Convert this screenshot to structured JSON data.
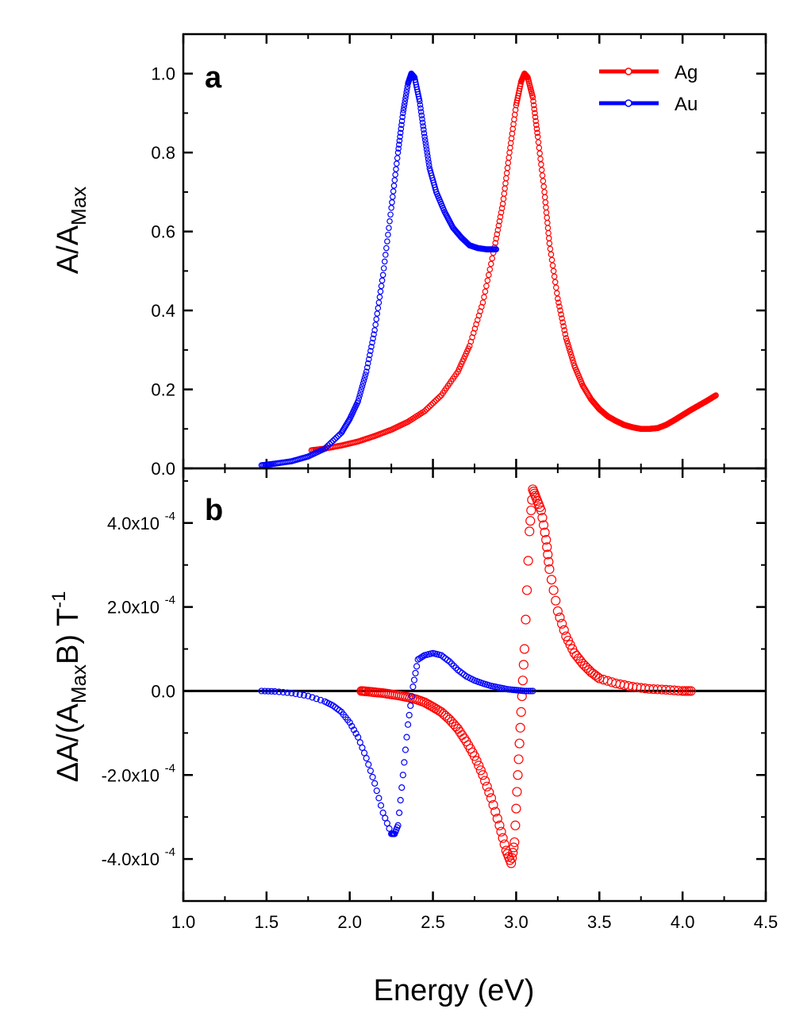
{
  "chart_data": [
    {
      "type": "scatter",
      "panel_label": "a",
      "ylabel_main": "A/A",
      "ylabel_sub": "Max",
      "xlim": [
        1.0,
        4.5
      ],
      "ylim": [
        0.0,
        1.1
      ],
      "yticks": [
        0.0,
        0.2,
        0.4,
        0.6,
        0.8,
        1.0
      ],
      "ytick_labels": [
        "0.0",
        "0.2",
        "0.4",
        "0.6",
        "0.8",
        "1.0"
      ],
      "grid": false,
      "legend_position": "top-right",
      "series": [
        {
          "name": "Ag",
          "color": "#ff0000",
          "points": [
            [
              1.77,
              0.046
            ],
            [
              1.85,
              0.05
            ],
            [
              1.95,
              0.058
            ],
            [
              2.05,
              0.068
            ],
            [
              2.15,
              0.082
            ],
            [
              2.25,
              0.098
            ],
            [
              2.35,
              0.118
            ],
            [
              2.45,
              0.145
            ],
            [
              2.55,
              0.185
            ],
            [
              2.65,
              0.245
            ],
            [
              2.72,
              0.31
            ],
            [
              2.8,
              0.42
            ],
            [
              2.87,
              0.56
            ],
            [
              2.92,
              0.67
            ],
            [
              2.96,
              0.8
            ],
            [
              3.0,
              0.92
            ],
            [
              3.03,
              0.98
            ],
            [
              3.05,
              1.0
            ],
            [
              3.07,
              0.99
            ],
            [
              3.1,
              0.94
            ],
            [
              3.13,
              0.84
            ],
            [
              3.17,
              0.7
            ],
            [
              3.2,
              0.57
            ],
            [
              3.25,
              0.43
            ],
            [
              3.3,
              0.33
            ],
            [
              3.35,
              0.26
            ],
            [
              3.4,
              0.21
            ],
            [
              3.45,
              0.175
            ],
            [
              3.5,
              0.15
            ],
            [
              3.55,
              0.132
            ],
            [
              3.6,
              0.12
            ],
            [
              3.65,
              0.11
            ],
            [
              3.7,
              0.104
            ],
            [
              3.75,
              0.1
            ],
            [
              3.8,
              0.1
            ],
            [
              3.85,
              0.102
            ],
            [
              3.9,
              0.11
            ],
            [
              3.95,
              0.122
            ],
            [
              4.0,
              0.135
            ],
            [
              4.05,
              0.148
            ],
            [
              4.1,
              0.16
            ],
            [
              4.15,
              0.172
            ],
            [
              4.2,
              0.185
            ]
          ]
        },
        {
          "name": "Au",
          "color": "#0000ff",
          "points": [
            [
              1.47,
              0.008
            ],
            [
              1.55,
              0.012
            ],
            [
              1.65,
              0.018
            ],
            [
              1.75,
              0.03
            ],
            [
              1.85,
              0.05
            ],
            [
              1.95,
              0.09
            ],
            [
              2.0,
              0.125
            ],
            [
              2.05,
              0.17
            ],
            [
              2.1,
              0.245
            ],
            [
              2.15,
              0.35
            ],
            [
              2.2,
              0.49
            ],
            [
              2.25,
              0.66
            ],
            [
              2.29,
              0.8
            ],
            [
              2.32,
              0.9
            ],
            [
              2.35,
              0.975
            ],
            [
              2.37,
              1.0
            ],
            [
              2.39,
              0.99
            ],
            [
              2.42,
              0.93
            ],
            [
              2.45,
              0.84
            ],
            [
              2.48,
              0.76
            ],
            [
              2.52,
              0.7
            ],
            [
              2.57,
              0.65
            ],
            [
              2.62,
              0.61
            ],
            [
              2.67,
              0.585
            ],
            [
              2.72,
              0.565
            ],
            [
              2.77,
              0.558
            ],
            [
              2.82,
              0.555
            ],
            [
              2.88,
              0.555
            ]
          ]
        }
      ]
    },
    {
      "type": "scatter",
      "panel_label": "b",
      "ylabel_parts": [
        "ΔA/(A",
        "Max",
        "B) T",
        "-1"
      ],
      "xlabel": "Energy (eV)",
      "xlim": [
        1.0,
        4.5
      ],
      "ylim": [
        -0.0005,
        0.00053
      ],
      "xticks": [
        1.0,
        1.5,
        2.0,
        2.5,
        3.0,
        3.5,
        4.0,
        4.5
      ],
      "xtick_labels": [
        "1.0",
        "1.5",
        "2.0",
        "2.5",
        "3.0",
        "3.5",
        "4.0",
        "4.5"
      ],
      "yticks": [
        -0.0004,
        -0.0002,
        0,
        0.0002,
        0.0004
      ],
      "ytick_labels": [
        {
          "mant": "-4.0x10",
          "exp": "-4"
        },
        {
          "mant": "-2.0x10",
          "exp": "-4"
        },
        {
          "mant": "0.0",
          "exp": ""
        },
        {
          "mant": "2.0x10",
          "exp": "-4"
        },
        {
          "mant": "4.0x10",
          "exp": "-4"
        }
      ],
      "zero_line": true,
      "grid": false,
      "series": [
        {
          "name": "Ag",
          "color": "#ff0000",
          "points": [
            [
              2.07,
              0.0
            ],
            [
              2.1,
              -1e-06
            ],
            [
              2.15,
              -3e-06
            ],
            [
              2.2,
              -5e-06
            ],
            [
              2.25,
              -8e-06
            ],
            [
              2.3,
              -1.1e-05
            ],
            [
              2.35,
              -1.5e-05
            ],
            [
              2.4,
              -2e-05
            ],
            [
              2.45,
              -2.7e-05
            ],
            [
              2.5,
              -3.8e-05
            ],
            [
              2.55,
              -5e-05
            ],
            [
              2.6,
              -6.8e-05
            ],
            [
              2.65,
              -9e-05
            ],
            [
              2.7,
              -0.00012
            ],
            [
              2.75,
              -0.000155
            ],
            [
              2.8,
              -0.0002
            ],
            [
              2.85,
              -0.000255
            ],
            [
              2.9,
              -0.00032
            ],
            [
              2.94,
              -0.00038
            ],
            [
              2.97,
              -0.00041
            ],
            [
              2.99,
              -0.00036
            ],
            [
              3.01,
              -0.0002
            ],
            [
              3.03,
              -5e-05
            ],
            [
              3.05,
              0.0001
            ],
            [
              3.08,
              0.00038
            ],
            [
              3.1,
              0.00048
            ],
            [
              3.12,
              0.00046
            ],
            [
              3.15,
              0.00043
            ],
            [
              3.18,
              0.00036
            ],
            [
              3.2,
              0.00029
            ],
            [
              3.25,
              0.00019
            ],
            [
              3.3,
              0.00013
            ],
            [
              3.35,
              9e-05
            ],
            [
              3.4,
              6.5e-05
            ],
            [
              3.45,
              4.5e-05
            ],
            [
              3.5,
              3e-05
            ],
            [
              3.6,
              1.8e-05
            ],
            [
              3.7,
              1e-05
            ],
            [
              3.8,
              5e-06
            ],
            [
              3.9,
              3e-06
            ],
            [
              4.0,
              0.0
            ],
            [
              4.05,
              0.0
            ]
          ]
        },
        {
          "name": "Au",
          "color": "#0000ff",
          "points": [
            [
              1.47,
              0.0
            ],
            [
              1.55,
              -1e-06
            ],
            [
              1.65,
              -5e-06
            ],
            [
              1.75,
              -1.2e-05
            ],
            [
              1.85,
              -2.5e-05
            ],
            [
              1.9,
              -3.5e-05
            ],
            [
              1.95,
              -5e-05
            ],
            [
              2.0,
              -7.5e-05
            ],
            [
              2.05,
              -0.00011
            ],
            [
              2.1,
              -0.00016
            ],
            [
              2.15,
              -0.00022
            ],
            [
              2.2,
              -0.00029
            ],
            [
              2.25,
              -0.00034
            ],
            [
              2.27,
              -0.00034
            ],
            [
              2.29,
              -0.00032
            ],
            [
              2.32,
              -0.0002
            ],
            [
              2.35,
              -8e-05
            ],
            [
              2.38,
              1e-05
            ],
            [
              2.41,
              7.5e-05
            ],
            [
              2.45,
              8.5e-05
            ],
            [
              2.5,
              9e-05
            ],
            [
              2.55,
              8.5e-05
            ],
            [
              2.6,
              7e-05
            ],
            [
              2.65,
              5e-05
            ],
            [
              2.7,
              3.5e-05
            ],
            [
              2.75,
              2.5e-05
            ],
            [
              2.8,
              1.8e-05
            ],
            [
              2.85,
              1.2e-05
            ],
            [
              2.9,
              8e-06
            ],
            [
              2.95,
              4e-06
            ],
            [
              3.0,
              2e-06
            ],
            [
              3.05,
              0.0
            ],
            [
              3.1,
              0.0
            ]
          ]
        }
      ]
    }
  ]
}
